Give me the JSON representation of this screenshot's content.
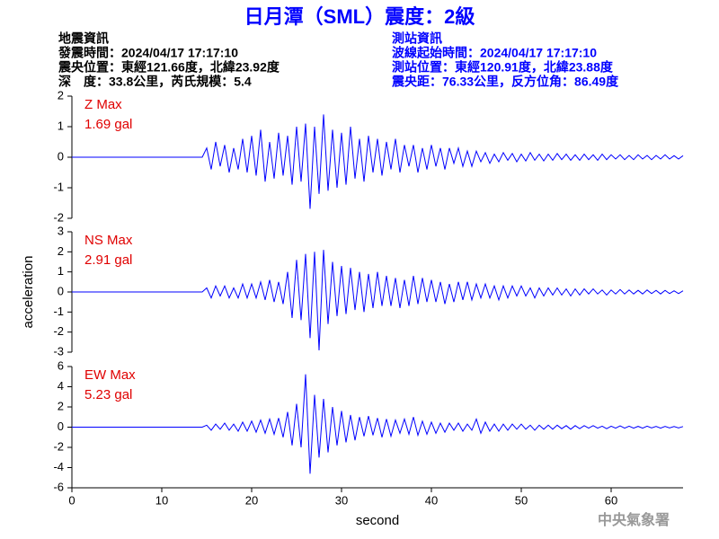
{
  "header": {
    "title": "日月潭（SML）震度：2級",
    "left": [
      "地震資訊",
      "發震時間：2024/04/17 17:17:10",
      "震央位置：東經121.66度，北緯23.92度",
      "深　度：33.8公里，芮氏規模：5.4"
    ],
    "right": [
      "測站資訊",
      "波線起始時間：2024/04/17 17:17:10",
      "測站位置：東經120.91度，北緯23.88度",
      "震央距：76.33公里，反方位角：86.49度"
    ]
  },
  "footer": "中央氣象署",
  "chart_data": [
    {
      "type": "line",
      "annotation": [
        "Z Max",
        "1.69 gal"
      ],
      "xlim": [
        0,
        68
      ],
      "ylim": [
        -2,
        2
      ],
      "yticks": [
        -2,
        -1,
        0,
        1,
        2
      ],
      "x": [
        0,
        14.5,
        15,
        15.5,
        16,
        16.5,
        17,
        17.5,
        18,
        18.5,
        19,
        19.5,
        20,
        20.5,
        21,
        21.5,
        22,
        22.5,
        23,
        23.5,
        24,
        24.5,
        25,
        25.5,
        26,
        26.5,
        27,
        27.5,
        28,
        28.5,
        29,
        29.5,
        30,
        30.5,
        31,
        31.5,
        32,
        32.5,
        33,
        33.5,
        34,
        34.5,
        35,
        35.5,
        36,
        36.5,
        37,
        37.5,
        38,
        38.5,
        39,
        39.5,
        40,
        40.5,
        41,
        41.5,
        42,
        42.5,
        43,
        43.5,
        44,
        44.5,
        45,
        45.5,
        46,
        46.5,
        47,
        47.5,
        48,
        48.5,
        49,
        49.5,
        50,
        50.5,
        51,
        51.5,
        52,
        52.5,
        53,
        53.5,
        54,
        54.5,
        55,
        55.5,
        56,
        56.5,
        57,
        57.5,
        58,
        58.5,
        59,
        59.5,
        60,
        60.5,
        61,
        61.5,
        62,
        62.5,
        63,
        63.5,
        64,
        64.5,
        65,
        65.5,
        66,
        66.5,
        67,
        67.5,
        68
      ],
      "series": [
        {
          "color": "#0000ff",
          "values": [
            0,
            0,
            0.3,
            -0.4,
            0.5,
            -0.3,
            0.4,
            -0.5,
            0.3,
            -0.4,
            0.6,
            -0.5,
            0.7,
            -0.6,
            0.9,
            -0.8,
            0.5,
            -0.7,
            0.8,
            -0.6,
            0.7,
            -0.9,
            1.0,
            -0.8,
            1.1,
            -1.69,
            1.0,
            -1.2,
            1.4,
            -1.1,
            0.9,
            -1.0,
            0.8,
            -0.9,
            1.0,
            -0.7,
            0.6,
            -0.8,
            0.7,
            -0.5,
            0.6,
            -0.6,
            0.5,
            -0.4,
            0.6,
            -0.5,
            0.4,
            -0.3,
            0.4,
            -0.5,
            0.3,
            -0.4,
            0.4,
            -0.3,
            0.3,
            -0.4,
            0.3,
            -0.2,
            0.3,
            -0.3,
            0.2,
            -0.3,
            0.2,
            -0.15,
            0.15,
            -0.2,
            0.1,
            -0.15,
            0.15,
            -0.1,
            0.12,
            -0.15,
            0.1,
            -0.12,
            0.15,
            -0.1,
            0.1,
            -0.12,
            0.1,
            -0.1,
            0.12,
            -0.08,
            0.1,
            -0.1,
            0.08,
            -0.1,
            0.1,
            -0.08,
            0.08,
            -0.1,
            0.1,
            -0.08,
            0.08,
            -0.06,
            0.08,
            -0.08,
            0.06,
            -0.08,
            0.08,
            -0.06,
            0.06,
            -0.08,
            0.06,
            -0.06,
            0.08,
            -0.06,
            0.05,
            -0.06,
            0.05
          ]
        }
      ]
    },
    {
      "type": "line",
      "annotation": [
        "NS Max",
        "2.91 gal"
      ],
      "ylabel": "acceleration",
      "xlim": [
        0,
        68
      ],
      "ylim": [
        -3,
        3
      ],
      "yticks": [
        -3,
        -2,
        -1,
        0,
        1,
        2,
        3
      ],
      "x": [
        0,
        14.5,
        15,
        15.5,
        16,
        16.5,
        17,
        17.5,
        18,
        18.5,
        19,
        19.5,
        20,
        20.5,
        21,
        21.5,
        22,
        22.5,
        23,
        23.5,
        24,
        24.5,
        25,
        25.5,
        26,
        26.5,
        27,
        27.5,
        28,
        28.5,
        29,
        29.5,
        30,
        30.5,
        31,
        31.5,
        32,
        32.5,
        33,
        33.5,
        34,
        34.5,
        35,
        35.5,
        36,
        36.5,
        37,
        37.5,
        38,
        38.5,
        39,
        39.5,
        40,
        40.5,
        41,
        41.5,
        42,
        42.5,
        43,
        43.5,
        44,
        44.5,
        45,
        45.5,
        46,
        46.5,
        47,
        47.5,
        48,
        48.5,
        49,
        49.5,
        50,
        50.5,
        51,
        51.5,
        52,
        52.5,
        53,
        53.5,
        54,
        54.5,
        55,
        55.5,
        56,
        56.5,
        57,
        57.5,
        58,
        58.5,
        59,
        59.5,
        60,
        60.5,
        61,
        61.5,
        62,
        62.5,
        63,
        63.5,
        64,
        64.5,
        65,
        65.5,
        66,
        66.5,
        67,
        67.5,
        68
      ],
      "series": [
        {
          "color": "#0000ff",
          "values": [
            0,
            0,
            0.2,
            -0.3,
            0.3,
            -0.2,
            0.3,
            -0.3,
            0.2,
            -0.3,
            0.4,
            -0.3,
            0.4,
            -0.3,
            0.5,
            -0.4,
            0.6,
            -0.5,
            0.5,
            -0.6,
            1.0,
            -1.3,
            1.6,
            -1.4,
            1.9,
            -2.3,
            2.0,
            -2.91,
            2.1,
            -1.6,
            1.5,
            -1.2,
            1.3,
            -1.1,
            1.2,
            -0.9,
            1.0,
            -1.0,
            0.9,
            -0.8,
            1.0,
            -0.7,
            0.8,
            -0.7,
            0.7,
            -0.8,
            0.6,
            -0.7,
            0.8,
            -0.6,
            0.7,
            -0.5,
            0.6,
            -0.5,
            0.5,
            -0.6,
            0.4,
            -0.5,
            0.5,
            -0.4,
            0.5,
            -0.4,
            0.4,
            -0.3,
            0.4,
            -0.3,
            0.3,
            -0.4,
            0.3,
            -0.3,
            0.3,
            -0.2,
            0.3,
            -0.2,
            0.2,
            -0.3,
            0.2,
            -0.2,
            0.2,
            -0.15,
            0.2,
            -0.15,
            0.15,
            -0.2,
            0.15,
            -0.15,
            0.15,
            -0.1,
            0.15,
            -0.1,
            0.1,
            -0.15,
            0.1,
            -0.1,
            0.12,
            -0.1,
            0.1,
            -0.1,
            0.08,
            -0.1,
            0.1,
            -0.08,
            0.08,
            -0.1,
            0.08,
            -0.08,
            0.06,
            -0.08,
            0.06
          ]
        }
      ]
    },
    {
      "type": "line",
      "annotation": [
        "EW Max",
        "5.23 gal"
      ],
      "xlabel": "second",
      "xlim": [
        0,
        68
      ],
      "xticks": [
        0,
        10,
        20,
        30,
        40,
        50,
        60
      ],
      "ylim": [
        -6,
        6
      ],
      "yticks": [
        -6,
        -4,
        -2,
        0,
        2,
        4,
        6
      ],
      "x": [
        0,
        14.5,
        15,
        15.5,
        16,
        16.5,
        17,
        17.5,
        18,
        18.5,
        19,
        19.5,
        20,
        20.5,
        21,
        21.5,
        22,
        22.5,
        23,
        23.5,
        24,
        24.5,
        25,
        25.5,
        26,
        26.5,
        27,
        27.5,
        28,
        28.5,
        29,
        29.5,
        30,
        30.5,
        31,
        31.5,
        32,
        32.5,
        33,
        33.5,
        34,
        34.5,
        35,
        35.5,
        36,
        36.5,
        37,
        37.5,
        38,
        38.5,
        39,
        39.5,
        40,
        40.5,
        41,
        41.5,
        42,
        42.5,
        43,
        43.5,
        44,
        44.5,
        45,
        45.5,
        46,
        46.5,
        47,
        47.5,
        48,
        48.5,
        49,
        49.5,
        50,
        50.5,
        51,
        51.5,
        52,
        52.5,
        53,
        53.5,
        54,
        54.5,
        55,
        55.5,
        56,
        56.5,
        57,
        57.5,
        58,
        58.5,
        59,
        59.5,
        60,
        60.5,
        61,
        61.5,
        62,
        62.5,
        63,
        63.5,
        64,
        64.5,
        65,
        65.5,
        66,
        66.5,
        67,
        67.5,
        68
      ],
      "series": [
        {
          "color": "#0000ff",
          "values": [
            0,
            0,
            0.2,
            -0.3,
            0.3,
            -0.2,
            0.4,
            -0.3,
            0.3,
            -0.4,
            0.5,
            -0.4,
            0.6,
            -0.5,
            0.7,
            -0.6,
            0.8,
            -0.7,
            0.9,
            -1.0,
            1.5,
            -1.8,
            2.3,
            -2.0,
            5.23,
            -4.6,
            3.2,
            -3.0,
            2.8,
            -2.5,
            2.0,
            -1.8,
            1.6,
            -1.5,
            1.2,
            -1.3,
            1.0,
            -0.9,
            1.1,
            -0.8,
            0.9,
            -1.0,
            0.8,
            -0.9,
            0.7,
            -0.6,
            0.8,
            -0.7,
            1.0,
            -0.8,
            0.6,
            -0.7,
            0.5,
            -0.6,
            0.4,
            -0.5,
            0.4,
            -0.3,
            0.4,
            -0.4,
            0.3,
            -0.3,
            0.8,
            -0.6,
            0.5,
            -0.4,
            0.3,
            -0.4,
            0.3,
            -0.3,
            0.3,
            -0.2,
            0.3,
            -0.2,
            0.2,
            -0.3,
            0.2,
            -0.2,
            0.2,
            -0.2,
            0.2,
            -0.15,
            0.15,
            -0.2,
            0.15,
            -0.15,
            0.15,
            -0.1,
            0.15,
            -0.1,
            0.1,
            -0.15,
            0.1,
            -0.1,
            0.12,
            -0.1,
            0.1,
            -0.1,
            0.08,
            -0.1,
            0.1,
            -0.08,
            0.08,
            -0.1,
            0.08,
            -0.08,
            0.06,
            -0.08,
            0.06
          ]
        }
      ]
    }
  ]
}
